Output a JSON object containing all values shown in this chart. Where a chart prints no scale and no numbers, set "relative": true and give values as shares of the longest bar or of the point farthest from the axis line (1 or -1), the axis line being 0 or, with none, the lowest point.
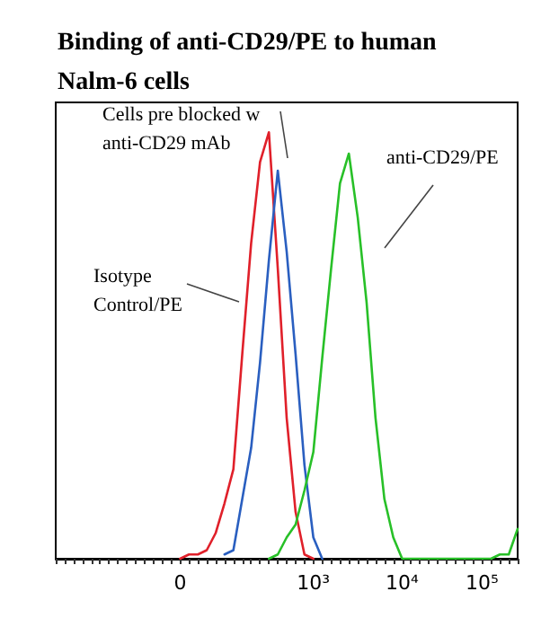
{
  "chart_data": {
    "type": "line",
    "title": "Binding of anti-CD29/PE to human Nalm-6 cells",
    "relative": true,
    "marker": "none",
    "line_style": "solid",
    "categories": [
      null,
      null,
      null,
      null,
      null,
      null,
      null,
      null,
      null,
      null,
      null,
      null,
      null,
      null,
      "0",
      null,
      null,
      null,
      null,
      null,
      null,
      null,
      null,
      null,
      null,
      null,
      null,
      null,
      null,
      "10³",
      null,
      null,
      null,
      null,
      null,
      null,
      null,
      null,
      null,
      "10⁴",
      null,
      null,
      null,
      null,
      null,
      null,
      null,
      null,
      "10⁵",
      null,
      null,
      null,
      null
    ],
    "series": [
      {
        "color": "#e0202a",
        "values": [
          null,
          null,
          null,
          null,
          null,
          null,
          null,
          null,
          null,
          null,
          null,
          null,
          null,
          null,
          0,
          0.01,
          0.01,
          0.02,
          0.06,
          0.13,
          0.21,
          0.48,
          0.74,
          0.93,
          1,
          0.68,
          0.33,
          0.11,
          0.01,
          0,
          null,
          null,
          null,
          null,
          null,
          null,
          null,
          null,
          null,
          null,
          null,
          null,
          null,
          null,
          null,
          null,
          null,
          null,
          null,
          null,
          null,
          null,
          null
        ]
      },
      {
        "color": "#2a5fc0",
        "values": [
          null,
          null,
          null,
          null,
          null,
          null,
          null,
          null,
          null,
          null,
          null,
          null,
          null,
          null,
          null,
          null,
          null,
          null,
          null,
          0.01,
          0.02,
          0.14,
          0.26,
          0.46,
          0.7,
          0.91,
          0.72,
          0.48,
          0.22,
          0.05,
          0,
          null,
          null,
          null,
          null,
          null,
          null,
          null,
          null,
          null,
          null,
          null,
          null,
          null,
          null,
          null,
          null,
          null,
          null,
          null,
          null,
          null,
          null
        ]
      },
      {
        "color": "#28c028",
        "values": [
          null,
          null,
          null,
          null,
          null,
          null,
          null,
          null,
          null,
          null,
          null,
          null,
          null,
          null,
          null,
          null,
          null,
          null,
          null,
          null,
          null,
          null,
          null,
          null,
          0,
          0.01,
          0.05,
          0.08,
          0.16,
          0.25,
          0.47,
          0.68,
          0.88,
          0.95,
          0.8,
          0.6,
          0.33,
          0.14,
          0.05,
          0,
          0,
          0,
          0,
          0,
          0,
          0,
          0,
          0,
          0,
          0,
          0.01,
          0.01,
          0.07
        ]
      }
    ],
    "annotations": [
      "Isotype Control/PE",
      "Cells pre blocked w anti-CD29 mAb",
      "anti-CD29/PE"
    ]
  }
}
